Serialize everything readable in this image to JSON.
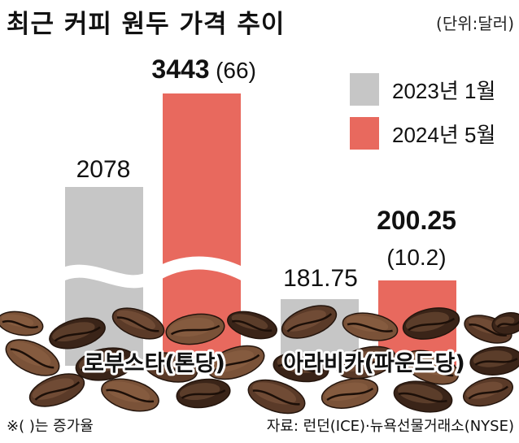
{
  "title": "최근 커피 원두 가격 추이",
  "unit_label": "(단위:달러)",
  "footnote": "※(   )는 증가율",
  "source": "자료: 런던(ICE)·뉴욕선물거래소(NYSE)",
  "colors": {
    "series_2023": "#c6c6c6",
    "series_2024": "#e8695e",
    "bean_dark": "#3a2418",
    "bean_mid": "#5a3a28",
    "bean_light": "#7a5238"
  },
  "chart_data": [
    {
      "type": "bar",
      "title": "",
      "categories": [
        "로부스타(톤당)"
      ],
      "series": [
        {
          "name": "2023년 1월",
          "values": [
            2078
          ]
        },
        {
          "name": "2024년 5월",
          "values": [
            3443
          ]
        }
      ],
      "data_labels": [
        "2078",
        "3443"
      ],
      "growth_label": "(66)",
      "axis_break": true,
      "legend": "top-right"
    },
    {
      "type": "bar",
      "title": "",
      "categories": [
        "아라비카(파운드당)"
      ],
      "series": [
        {
          "name": "2023년 1월",
          "values": [
            181.75
          ]
        },
        {
          "name": "2024년 5월",
          "values": [
            200.25
          ]
        }
      ],
      "data_labels": [
        "181.75",
        "200.25"
      ],
      "growth_label": "(10.2)",
      "axis_break": false,
      "legend": "top-right"
    }
  ]
}
